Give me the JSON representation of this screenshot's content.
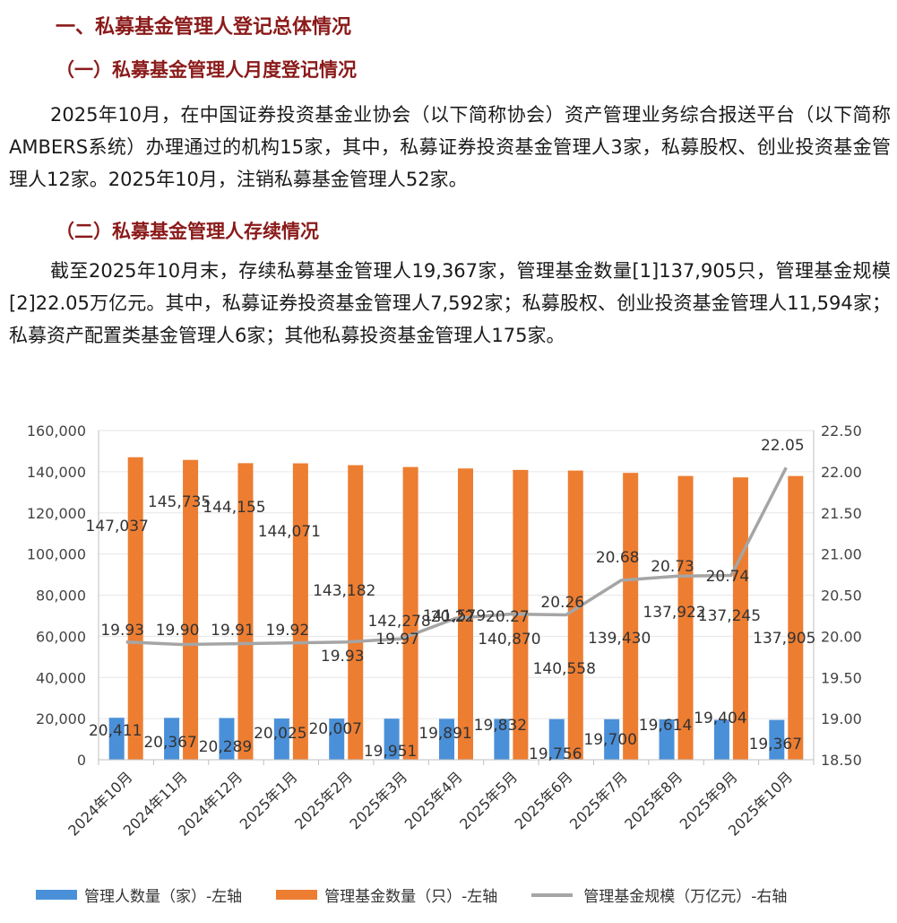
{
  "heading_main": "一、私募基金管理人登记总体情况",
  "section1": {
    "title": "（一）私募基金管理人月度登记情况",
    "paragraph": "2025年10月，在中国证券投资基金业协会（以下简称协会）资产管理业务综合报送平台（以下简称AMBERS系统）办理通过的机构15家，其中，私募证券投资基金管理人3家，私募股权、创业投资基金管理人12家。2025年10月，注销私募基金管理人52家。"
  },
  "section2": {
    "title": "（二）私募基金管理人存续情况",
    "paragraph": "截至2025年10月末，存续私募基金管理人19,367家，管理基金数量[1]137,905只，管理基金规模[2]22.05万亿元。其中，私募证券投资基金管理人7,592家；私募股权、创业投资基金管理人11,594家；私募资产配置类基金管理人6家；其他私募投资基金管理人175家。"
  },
  "colors": {
    "heading": "#8b1a1a",
    "managers": "#4a90d9",
    "funds": "#ed7d31",
    "scale": "#a5a5a5"
  },
  "chart_data": {
    "type": "bar+line",
    "categories": [
      "2024年10月",
      "2024年11月",
      "2024年12月",
      "2025年1月",
      "2025年2月",
      "2025年3月",
      "2025年4月",
      "2025年5月",
      "2025年6月",
      "2025年7月",
      "2025年8月",
      "2025年9月",
      "2025年10月"
    ],
    "series": [
      {
        "name": "管理人数量（家）-左轴",
        "type": "bar",
        "axis": "left",
        "values": [
          20411,
          20367,
          20289,
          20025,
          20007,
          19951,
          19891,
          19832,
          19756,
          19700,
          19614,
          19404,
          19367
        ],
        "labels": [
          "20,411",
          "20,367",
          "20,289",
          "20,025",
          "20,007",
          "19,951",
          "19,891",
          "19,832",
          "19,756",
          "19,700",
          "19,614",
          "19,404",
          "19,367"
        ]
      },
      {
        "name": "管理基金数量（只）-左轴",
        "type": "bar",
        "axis": "left",
        "values": [
          147037,
          145735,
          144155,
          144071,
          143182,
          142278,
          141579,
          140870,
          140558,
          139430,
          137922,
          137245,
          137905
        ],
        "labels": [
          "147,037",
          "145,735",
          "144,155",
          "144,071",
          "143,182",
          "142,278",
          "141,579",
          "140,870",
          "140,558",
          "139,430",
          "137,922",
          "137,245",
          "137,905"
        ]
      },
      {
        "name": "管理基金规模（万亿元）-右轴",
        "type": "line",
        "axis": "right",
        "values": [
          19.93,
          19.9,
          19.91,
          19.92,
          19.93,
          19.97,
          20.22,
          20.27,
          20.26,
          20.68,
          20.73,
          20.74,
          22.05
        ],
        "labels": [
          "19.93",
          "19.90",
          "19.91",
          "19.92",
          "19.93",
          "19.97",
          "20.22",
          "20.27",
          "20.26",
          "20.68",
          "20.73",
          "20.74",
          "22.05"
        ]
      }
    ],
    "left_axis": {
      "min": 0,
      "max": 160000,
      "ticks": [
        "0",
        "20,000",
        "40,000",
        "60,000",
        "80,000",
        "100,000",
        "120,000",
        "140,000",
        "160,000"
      ]
    },
    "right_axis": {
      "min": 18.5,
      "max": 22.5,
      "ticks": [
        "18.50",
        "19.00",
        "19.50",
        "20.00",
        "20.50",
        "21.00",
        "21.50",
        "22.00",
        "22.50"
      ]
    },
    "legend": [
      {
        "label": "管理人数量（家）-左轴"
      },
      {
        "label": "管理基金数量（只）-左轴"
      },
      {
        "label": "管理基金规模（万亿元）-右轴"
      }
    ]
  }
}
